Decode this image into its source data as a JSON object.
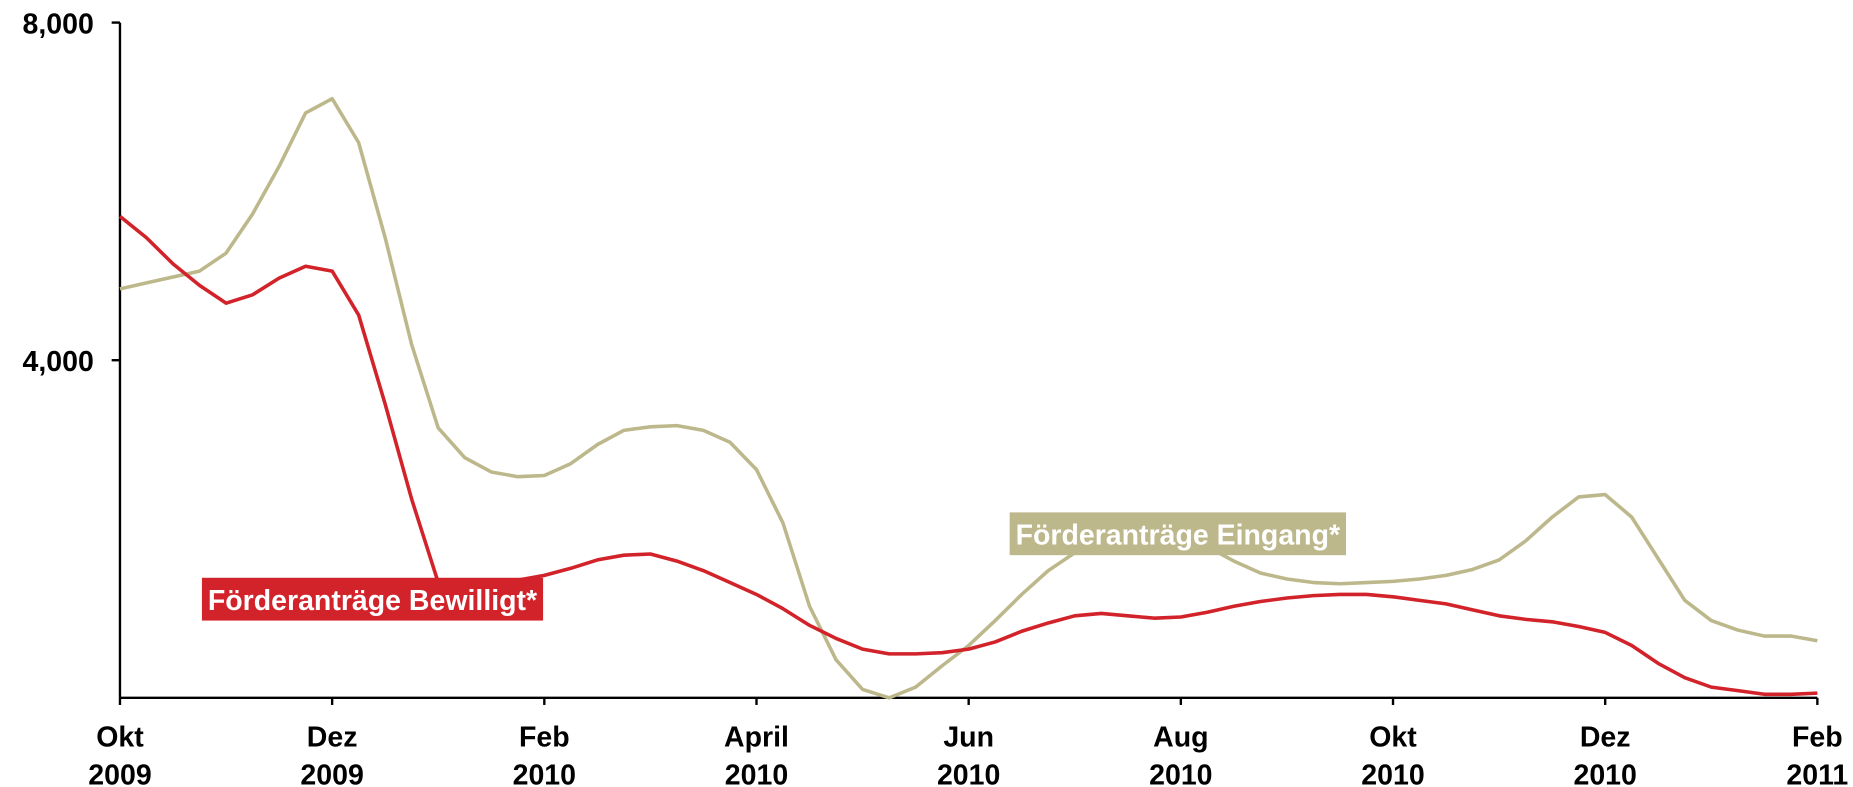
{
  "chart_data": {
    "type": "line",
    "categories": [
      "Okt 2009",
      null,
      null,
      null,
      null,
      null,
      null,
      null,
      "Dez 2009",
      null,
      null,
      null,
      null,
      null,
      null,
      null,
      "Feb 2010",
      null,
      null,
      null,
      null,
      null,
      null,
      null,
      "April 2010",
      null,
      null,
      null,
      null,
      null,
      null,
      null,
      "Jun 2010",
      null,
      null,
      null,
      null,
      null,
      null,
      null,
      "Aug 2010",
      null,
      null,
      null,
      null,
      null,
      null,
      null,
      "Okt 2010",
      null,
      null,
      null,
      null,
      null,
      null,
      null,
      "Dez 2010",
      null,
      null,
      null,
      null,
      null,
      null,
      null,
      "Feb 2011"
    ],
    "series": [
      {
        "name": "Förderanträge Eingang*",
        "color": "#bdb88c",
        "values": [
          4845,
          4916,
          4986,
          5056,
          5268,
          5732,
          6296,
          6930,
          7099,
          6578,
          5451,
          4183,
          3197,
          2845,
          2676,
          2620,
          2634,
          2775,
          3000,
          3169,
          3211,
          3225,
          3169,
          3028,
          2704,
          2070,
          1085,
          451,
          99,
          0,
          127,
          380,
          620,
          916,
          1225,
          1507,
          1718,
          1859,
          1901,
          1901,
          1859,
          1789,
          1620,
          1479,
          1408,
          1366,
          1352,
          1366,
          1380,
          1408,
          1451,
          1521,
          1634,
          1859,
          2141,
          2380,
          2408,
          2141,
          1648,
          1155,
          916,
          803,
          732,
          732,
          676
        ]
      },
      {
        "name": "Förderanträge Bewilligt*",
        "color": "#d2232a",
        "values": [
          5704,
          5451,
          5141,
          4887,
          4676,
          4775,
          4972,
          5113,
          5056,
          4535,
          3479,
          2352,
          1366,
          1366,
          1366,
          1394,
          1451,
          1535,
          1634,
          1690,
          1704,
          1620,
          1507,
          1366,
          1225,
          1056,
          859,
          704,
          577,
          521,
          521,
          535,
          577,
          662,
          789,
          887,
          972,
          1000,
          972,
          944,
          958,
          1014,
          1085,
          1141,
          1183,
          1211,
          1225,
          1225,
          1197,
          1155,
          1113,
          1042,
          972,
          930,
          901,
          845,
          775,
          620,
          408,
          239,
          127,
          85,
          42,
          42,
          56
        ]
      }
    ],
    "ylim": [
      0,
      8000
    ],
    "yticks": [
      {
        "value": 4000,
        "label": "4,000"
      },
      {
        "value": 8000,
        "label": "8,000"
      }
    ]
  }
}
